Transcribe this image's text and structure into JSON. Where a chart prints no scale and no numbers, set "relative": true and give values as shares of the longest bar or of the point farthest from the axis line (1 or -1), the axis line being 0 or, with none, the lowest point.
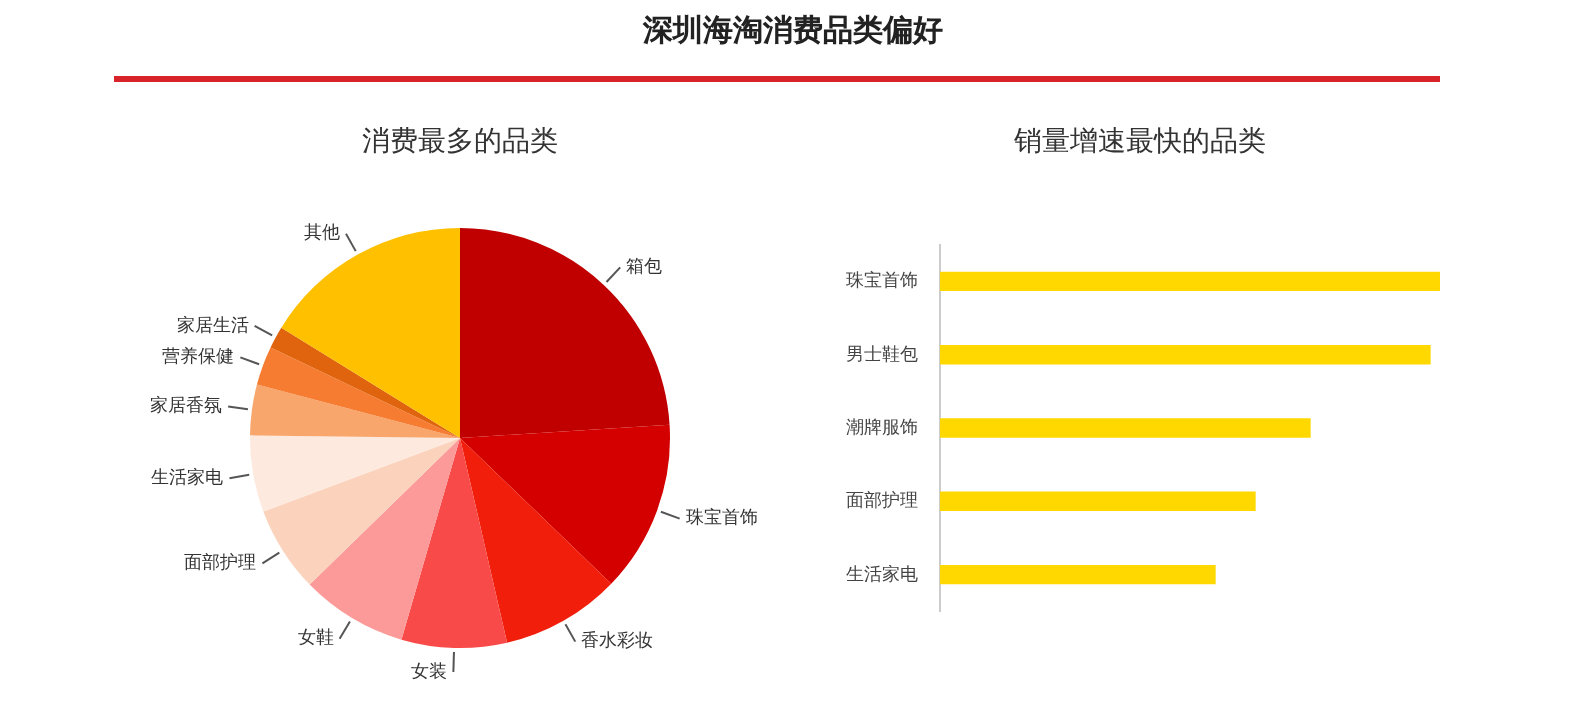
{
  "chart_data": [
    {
      "type": "pie",
      "title": "深圳海淘消费品类偏好",
      "subtitle": "消费最多的品类",
      "categories": [
        "箱包",
        "珠宝首饰",
        "香水彩妆",
        "女装",
        "女鞋",
        "面部护理",
        "生活家电",
        "家居香氛",
        "营养保健",
        "家居生活",
        "其他"
      ],
      "values": [
        24,
        13.2,
        9.2,
        8.1,
        8.2,
        6.6,
        5.9,
        3.9,
        3,
        1.7,
        16.2
      ],
      "colors": [
        "#c00000",
        "#d40000",
        "#f01e0a",
        "#f84a48",
        "#fb9a98",
        "#fbd3bd",
        "#fde9de",
        "#f8a66c",
        "#f57c30",
        "#e0640e",
        "#ffc000"
      ],
      "legend": false
    },
    {
      "type": "bar",
      "orientation": "horizontal",
      "relative": true,
      "title": "销量增速最快的品类",
      "categories": [
        "珠宝首饰",
        "男士鞋包",
        "潮牌服饰",
        "面部护理",
        "生活家电"
      ],
      "values": [
        1,
        0.98,
        0.74,
        0.63,
        0.55
      ],
      "color": "#ffd800",
      "legend": false
    }
  ]
}
